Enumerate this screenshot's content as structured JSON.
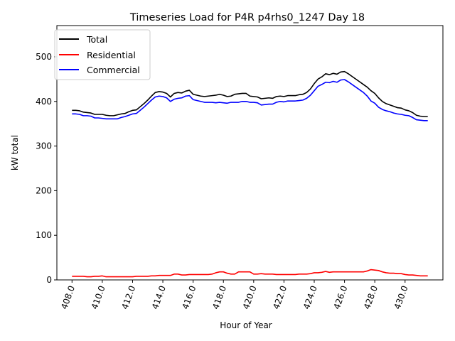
{
  "chart_data": {
    "type": "line",
    "title": "Timeseries Load for P4R p4rhs0_1247  Day 18",
    "xlabel": "Hour of Year",
    "ylabel": "kW total",
    "xlim": [
      407.0,
      432.5
    ],
    "ylim": [
      0,
      570
    ],
    "grid": false,
    "legend_position": "top-left",
    "x_ticks": [
      408,
      410,
      412,
      414,
      416,
      418,
      420,
      422,
      424,
      426,
      428,
      430
    ],
    "x_tick_labels": [
      "408.0",
      "410.0",
      "412.0",
      "414.0",
      "416.0",
      "418.0",
      "420.0",
      "422.0",
      "424.0",
      "426.0",
      "428.0",
      "430.0"
    ],
    "y_ticks": [
      0,
      100,
      200,
      300,
      400,
      500
    ],
    "y_tick_labels": [
      "0",
      "100",
      "200",
      "300",
      "400",
      "500"
    ],
    "x": [
      408.0,
      408.25,
      408.5,
      408.75,
      409.0,
      409.25,
      409.5,
      409.75,
      410.0,
      410.25,
      410.5,
      410.75,
      411.0,
      411.25,
      411.5,
      411.75,
      412.0,
      412.25,
      412.5,
      412.75,
      413.0,
      413.25,
      413.5,
      413.75,
      414.0,
      414.25,
      414.5,
      414.75,
      415.0,
      415.25,
      415.5,
      415.75,
      416.0,
      416.25,
      416.5,
      416.75,
      417.0,
      417.25,
      417.5,
      417.75,
      418.0,
      418.25,
      418.5,
      418.75,
      419.0,
      419.25,
      419.5,
      419.75,
      420.0,
      420.25,
      420.5,
      420.75,
      421.0,
      421.25,
      421.5,
      421.75,
      422.0,
      422.25,
      422.5,
      422.75,
      423.0,
      423.25,
      423.5,
      423.75,
      424.0,
      424.25,
      424.5,
      424.75,
      425.0,
      425.25,
      425.5,
      425.75,
      426.0,
      426.25,
      426.5,
      426.75,
      427.0,
      427.25,
      427.5,
      427.75,
      428.0,
      428.25,
      428.5,
      428.75,
      429.0,
      429.25,
      429.5,
      429.75,
      430.0,
      430.25,
      430.5,
      430.75,
      431.0,
      431.25,
      431.5
    ],
    "series": [
      {
        "name": "Total",
        "color": "#000000",
        "values": [
          380,
          380,
          379,
          376,
          375,
          374,
          371,
          371,
          371,
          369,
          368,
          368,
          370,
          372,
          373,
          377,
          380,
          381,
          388,
          395,
          403,
          412,
          420,
          422,
          421,
          418,
          410,
          418,
          420,
          419,
          423,
          425,
          416,
          414,
          412,
          411,
          412,
          413,
          414,
          416,
          414,
          411,
          412,
          416,
          417,
          418,
          418,
          412,
          411,
          410,
          406,
          407,
          408,
          407,
          411,
          412,
          411,
          413,
          413,
          413,
          415,
          416,
          420,
          428,
          440,
          450,
          455,
          462,
          460,
          463,
          461,
          466,
          467,
          462,
          456,
          450,
          444,
          438,
          432,
          424,
          418,
          408,
          400,
          395,
          392,
          389,
          386,
          385,
          381,
          379,
          375,
          369,
          367,
          366,
          366
        ]
      },
      {
        "name": "Residential",
        "color": "#ff0000",
        "values": [
          8,
          8,
          8,
          8,
          7,
          7,
          8,
          8,
          9,
          7,
          7,
          7,
          7,
          7,
          7,
          7,
          7,
          8,
          8,
          8,
          8,
          9,
          9,
          10,
          10,
          10,
          10,
          13,
          13,
          11,
          11,
          12,
          12,
          12,
          12,
          12,
          12,
          13,
          16,
          18,
          18,
          15,
          13,
          13,
          18,
          18,
          18,
          18,
          13,
          13,
          14,
          13,
          13,
          13,
          12,
          12,
          12,
          12,
          12,
          12,
          13,
          13,
          13,
          14,
          16,
          16,
          17,
          19,
          17,
          18,
          18,
          18,
          18,
          18,
          18,
          18,
          18,
          18,
          20,
          23,
          22,
          21,
          18,
          16,
          15,
          15,
          14,
          14,
          12,
          11,
          11,
          10,
          9,
          9,
          9
        ]
      },
      {
        "name": "Commercial",
        "color": "#0000ff",
        "values": [
          372,
          372,
          371,
          368,
          368,
          367,
          363,
          363,
          362,
          361,
          361,
          361,
          361,
          364,
          366,
          369,
          372,
          373,
          380,
          387,
          395,
          403,
          410,
          412,
          411,
          408,
          400,
          405,
          407,
          408,
          412,
          413,
          404,
          402,
          400,
          398,
          398,
          398,
          397,
          398,
          397,
          396,
          398,
          398,
          398,
          400,
          400,
          398,
          398,
          397,
          392,
          393,
          394,
          394,
          398,
          400,
          399,
          401,
          401,
          401,
          402,
          403,
          407,
          414,
          424,
          434,
          438,
          443,
          442,
          445,
          443,
          448,
          449,
          444,
          438,
          432,
          426,
          420,
          412,
          401,
          396,
          387,
          382,
          379,
          377,
          374,
          372,
          371,
          369,
          368,
          364,
          359,
          358,
          357,
          357
        ]
      }
    ]
  }
}
